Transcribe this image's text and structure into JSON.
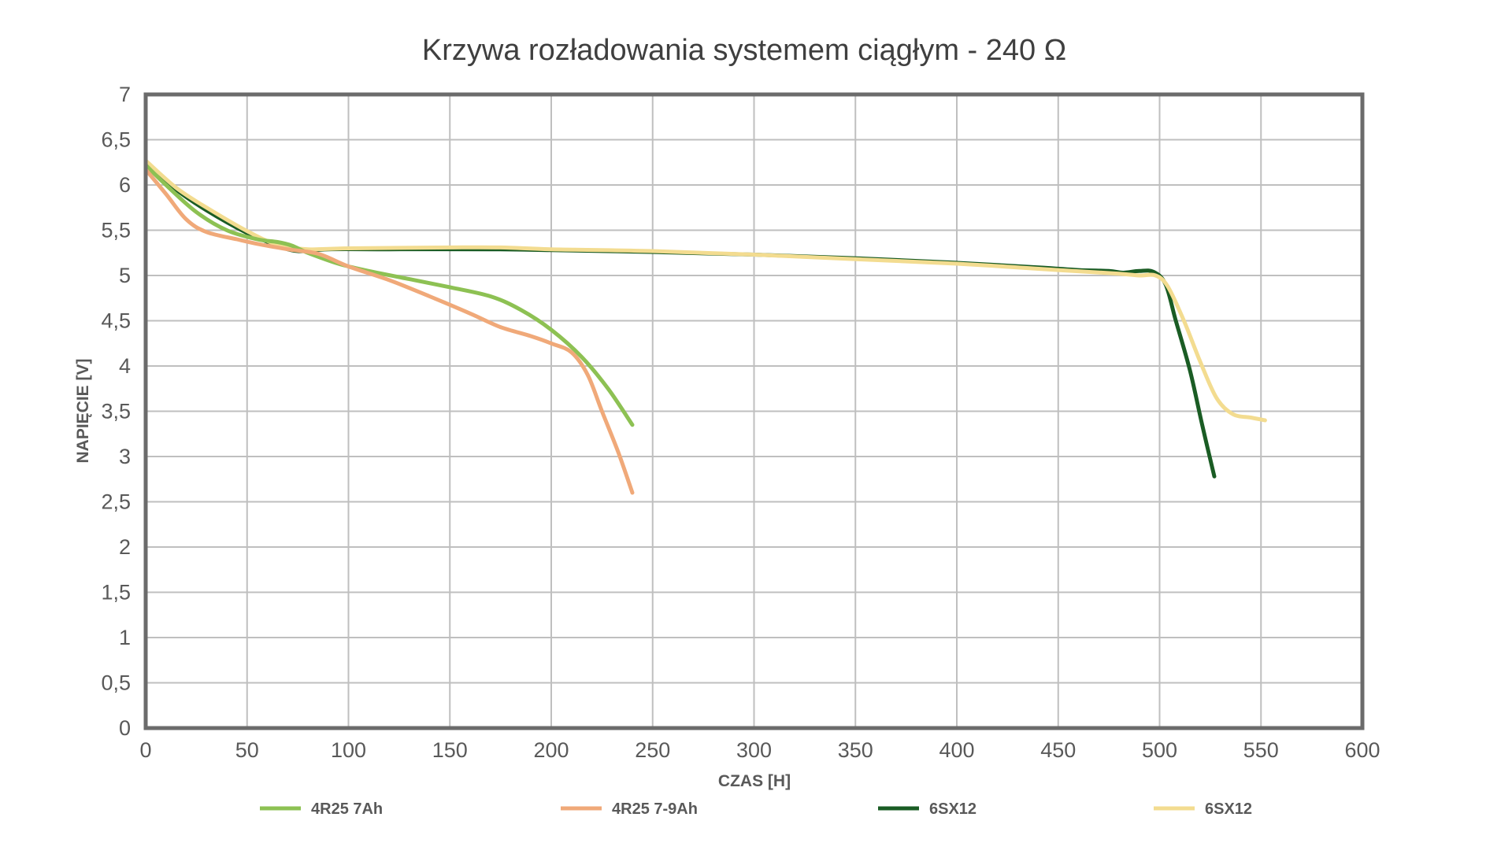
{
  "chart_data": {
    "type": "line",
    "title": "Krzywa rozładowania systemem ciągłym - 240 Ω",
    "xlabel": "CZAS [H]",
    "ylabel": "NAPIĘCIE [V]",
    "xlim": [
      0,
      600
    ],
    "ylim": [
      0,
      7
    ],
    "x_ticks": [
      0,
      50,
      100,
      150,
      200,
      250,
      300,
      350,
      400,
      450,
      500,
      550,
      600
    ],
    "x_tick_labels": [
      "0",
      "50",
      "100",
      "150",
      "200",
      "250",
      "300",
      "350",
      "400",
      "450",
      "500",
      "550",
      "600"
    ],
    "y_ticks": [
      0,
      0.5,
      1,
      1.5,
      2,
      2.5,
      3,
      3.5,
      4,
      4.5,
      5,
      5.5,
      6,
      6.5,
      7
    ],
    "y_tick_labels": [
      "0",
      "0,5",
      "1",
      "1,5",
      "2",
      "2,5",
      "3",
      "3,5",
      "4",
      "4,5",
      "5",
      "5,5",
      "6",
      "6,5",
      "7"
    ],
    "grid": true,
    "legend_position": "bottom",
    "series": [
      {
        "name": "4R25 7Ah",
        "color": "#8dc153",
        "points": [
          [
            0,
            6.22
          ],
          [
            10,
            6.0
          ],
          [
            25,
            5.7
          ],
          [
            40,
            5.5
          ],
          [
            55,
            5.4
          ],
          [
            65,
            5.37
          ],
          [
            72,
            5.33
          ],
          [
            80,
            5.25
          ],
          [
            95,
            5.13
          ],
          [
            110,
            5.05
          ],
          [
            130,
            4.96
          ],
          [
            150,
            4.87
          ],
          [
            170,
            4.77
          ],
          [
            185,
            4.62
          ],
          [
            200,
            4.4
          ],
          [
            215,
            4.1
          ],
          [
            228,
            3.75
          ],
          [
            240,
            3.35
          ]
        ]
      },
      {
        "name": "4R25 7-9Ah",
        "color": "#f0a979",
        "points": [
          [
            0,
            6.17
          ],
          [
            10,
            5.9
          ],
          [
            20,
            5.62
          ],
          [
            30,
            5.48
          ],
          [
            45,
            5.4
          ],
          [
            55,
            5.35
          ],
          [
            70,
            5.29
          ],
          [
            85,
            5.24
          ],
          [
            100,
            5.1
          ],
          [
            120,
            4.95
          ],
          [
            140,
            4.77
          ],
          [
            160,
            4.58
          ],
          [
            175,
            4.43
          ],
          [
            190,
            4.33
          ],
          [
            200,
            4.25
          ],
          [
            210,
            4.15
          ],
          [
            218,
            3.9
          ],
          [
            225,
            3.5
          ],
          [
            233,
            3.05
          ],
          [
            240,
            2.6
          ]
        ]
      },
      {
        "name": "6SX12",
        "color": "#1a5c24",
        "points": [
          [
            0,
            6.25
          ],
          [
            15,
            5.95
          ],
          [
            30,
            5.72
          ],
          [
            50,
            5.47
          ],
          [
            65,
            5.33
          ],
          [
            75,
            5.27
          ],
          [
            90,
            5.29
          ],
          [
            120,
            5.29
          ],
          [
            170,
            5.29
          ],
          [
            200,
            5.28
          ],
          [
            250,
            5.26
          ],
          [
            300,
            5.23
          ],
          [
            350,
            5.19
          ],
          [
            400,
            5.14
          ],
          [
            440,
            5.09
          ],
          [
            460,
            5.06
          ],
          [
            475,
            5.05
          ],
          [
            482,
            5.03
          ],
          [
            490,
            5.05
          ],
          [
            497,
            5.04
          ],
          [
            503,
            4.9
          ],
          [
            508,
            4.5
          ],
          [
            515,
            3.95
          ],
          [
            521,
            3.35
          ],
          [
            527,
            2.78
          ]
        ]
      },
      {
        "name": "6SX12",
        "color": "#f3dc90",
        "points": [
          [
            0,
            6.27
          ],
          [
            15,
            5.97
          ],
          [
            30,
            5.75
          ],
          [
            50,
            5.49
          ],
          [
            65,
            5.34
          ],
          [
            80,
            5.29
          ],
          [
            100,
            5.3
          ],
          [
            150,
            5.31
          ],
          [
            175,
            5.31
          ],
          [
            200,
            5.29
          ],
          [
            250,
            5.27
          ],
          [
            300,
            5.23
          ],
          [
            350,
            5.18
          ],
          [
            400,
            5.13
          ],
          [
            450,
            5.06
          ],
          [
            480,
            5.02
          ],
          [
            490,
            5.0
          ],
          [
            498,
            5.0
          ],
          [
            504,
            4.88
          ],
          [
            512,
            4.5
          ],
          [
            520,
            4.05
          ],
          [
            528,
            3.65
          ],
          [
            536,
            3.47
          ],
          [
            545,
            3.43
          ],
          [
            552,
            3.4
          ]
        ]
      }
    ]
  }
}
